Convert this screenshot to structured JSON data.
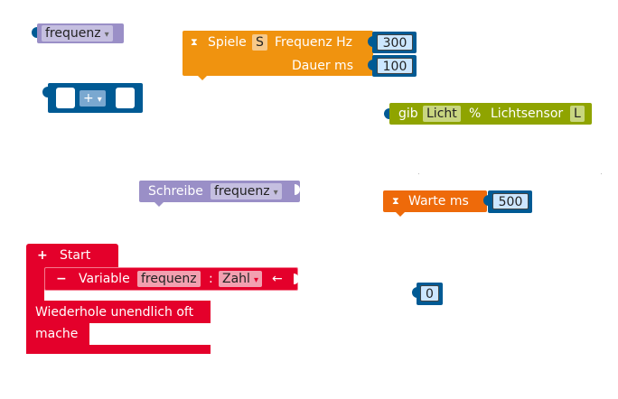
{
  "blocks": {
    "frequenz_var": {
      "name": "frequenz",
      "arrow": "▾"
    },
    "math_op": {
      "op": "+",
      "arrow": "▾"
    },
    "play_tone": {
      "label": "Spiele",
      "sound": "S",
      "freq_label": "Frequenz Hz",
      "freq_value": "300",
      "duration_label": "Dauer ms",
      "duration_value": "100"
    },
    "light_sensor": {
      "label": "gib",
      "mode": "Licht",
      "unit": "%",
      "sensor": "Lichtsensor",
      "port": "L"
    },
    "write": {
      "label": "Schreibe",
      "var": "frequenz",
      "arrow": "▾"
    },
    "wait": {
      "label": "Warte ms",
      "value": "500"
    },
    "start": {
      "plus": "+",
      "label": "Start",
      "minus": "−",
      "variable_label": "Variable",
      "var_name": "frequenz",
      "colon": ":",
      "type": "Zahl",
      "type_arrow": "▾",
      "assign": "←"
    },
    "loop": {
      "label": "Wiederhole unendlich oft",
      "do": "mache"
    },
    "number_zero": {
      "value": "0"
    }
  },
  "colors": {
    "variable": "#9a8fc7",
    "math": "#005a94",
    "sound": "#f0930f",
    "sensor": "#8fa400",
    "control_wait": "#ee6a0a",
    "start": "#e4002b",
    "number_bg": "#cce6ff"
  }
}
